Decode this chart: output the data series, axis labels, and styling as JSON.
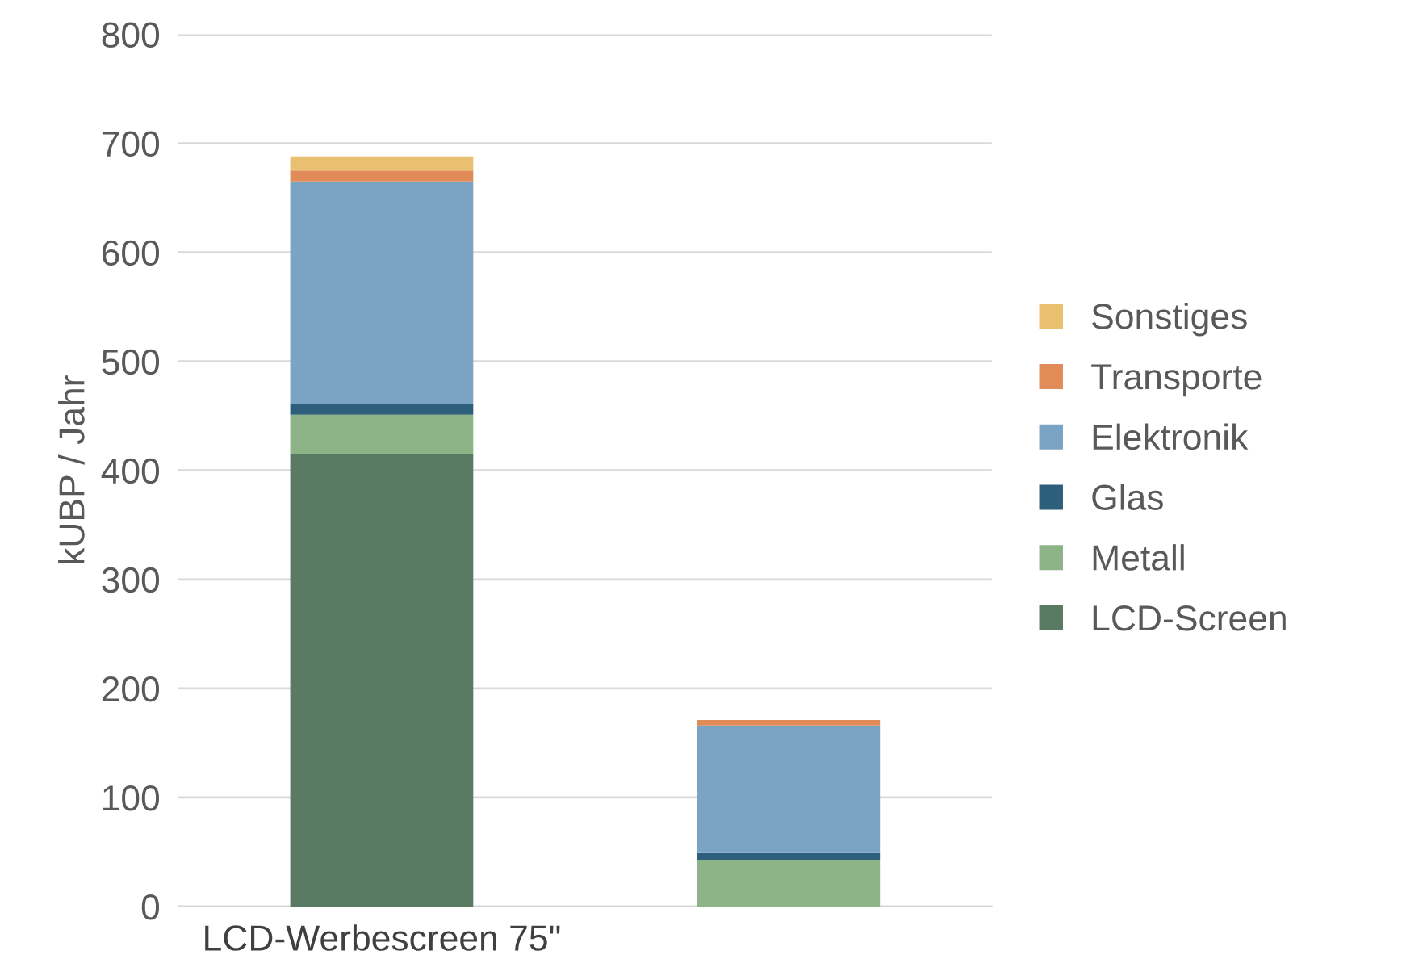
{
  "chart_data": {
    "type": "bar",
    "stacked": true,
    "ylabel": "kUBP / Jahr",
    "categories": [
      "LCD-Werbescreen 75\"",
      null
    ],
    "series": [
      {
        "name": "LCD-Screen",
        "color": "#5a7a63",
        "values": [
          415,
          0
        ]
      },
      {
        "name": "Metall",
        "color": "#8cb487",
        "values": [
          36,
          43
        ]
      },
      {
        "name": "Glas",
        "color": "#2d5f7a",
        "values": [
          10,
          6
        ]
      },
      {
        "name": "Elektronik",
        "color": "#7ba3c4",
        "values": [
          204,
          117
        ]
      },
      {
        "name": "Transporte",
        "color": "#e08b58",
        "values": [
          10,
          5
        ]
      },
      {
        "name": "Sonstiges",
        "color": "#e8c070",
        "values": [
          13,
          0
        ]
      }
    ],
    "ylim": [
      0,
      800
    ],
    "yticks": [
      0,
      100,
      200,
      300,
      400,
      500,
      600,
      700,
      800
    ],
    "grid": "y",
    "legend": "right"
  }
}
